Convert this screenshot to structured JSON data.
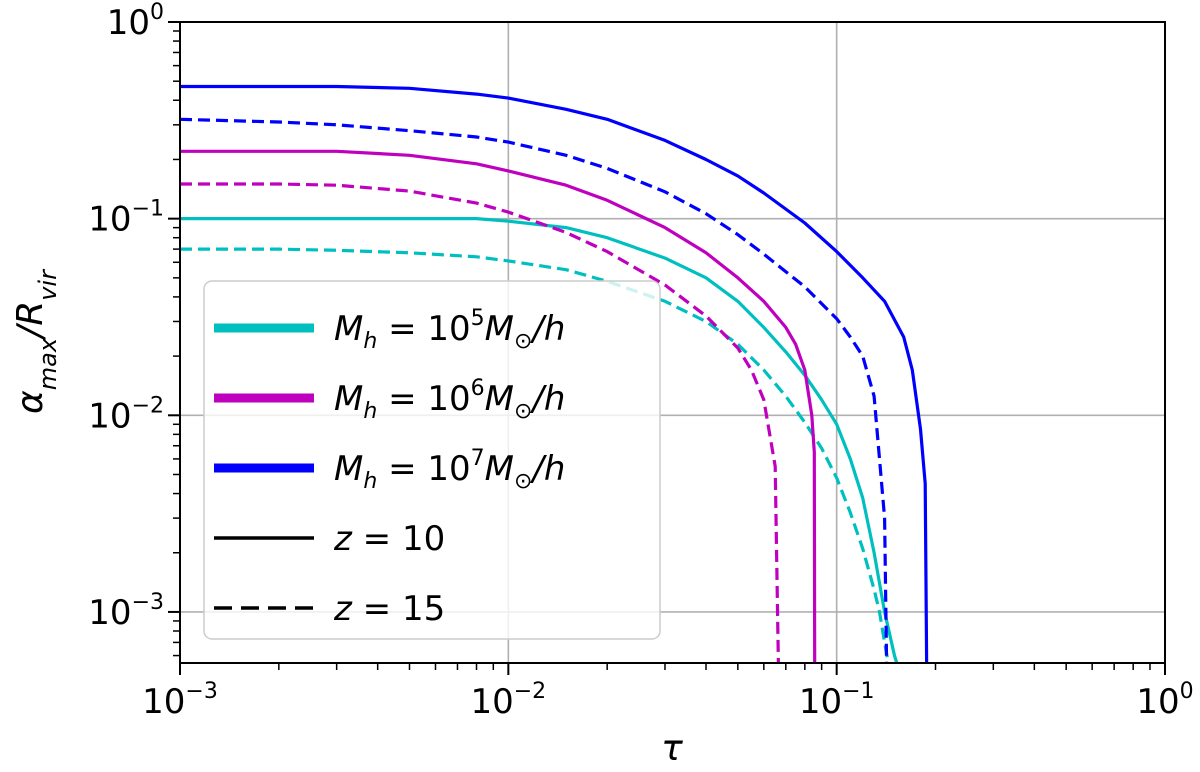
{
  "chart_data": {
    "type": "line",
    "xscale": "log",
    "yscale": "log",
    "xlim": [
      0.001,
      1
    ],
    "ylim": [
      0.00055,
      1
    ],
    "grid": true,
    "xlabel": "τ",
    "ylabel": "α_max/R_vir",
    "x_ticks": [
      {
        "value": 0.001,
        "base": "10",
        "exp": "−3"
      },
      {
        "value": 0.01,
        "base": "10",
        "exp": "−2"
      },
      {
        "value": 0.1,
        "base": "10",
        "exp": "−1"
      },
      {
        "value": 1,
        "base": "10",
        "exp": "0"
      }
    ],
    "y_ticks": [
      {
        "value": 0.001,
        "base": "10",
        "exp": "−3"
      },
      {
        "value": 0.01,
        "base": "10",
        "exp": "−2"
      },
      {
        "value": 0.1,
        "base": "10",
        "exp": "−1"
      },
      {
        "value": 1,
        "base": "10",
        "exp": "0"
      }
    ],
    "legend_position": "lower-left",
    "legend": [
      {
        "id": "m5",
        "kind": "color",
        "color": "#00bfbf",
        "lhs_sym": "M",
        "lhs_sub": "h",
        "eq": " = 10",
        "exp": "5",
        "rhs_sym": "M",
        "rhs_sub": "⊙",
        "rhs_tail": "/h"
      },
      {
        "id": "m6",
        "kind": "color",
        "color": "#bf00bf",
        "lhs_sym": "M",
        "lhs_sub": "h",
        "eq": " = 10",
        "exp": "6",
        "rhs_sym": "M",
        "rhs_sub": "⊙",
        "rhs_tail": "/h"
      },
      {
        "id": "m7",
        "kind": "color",
        "color": "#0000ff",
        "lhs_sym": "M",
        "lhs_sub": "h",
        "eq": " = 10",
        "exp": "7",
        "rhs_sym": "M",
        "rhs_sub": "⊙",
        "rhs_tail": "/h"
      },
      {
        "id": "z10",
        "kind": "style",
        "dash": false,
        "color": "#000000",
        "lhs_sym": "z",
        "eq": " = 10"
      },
      {
        "id": "z15",
        "kind": "style",
        "dash": true,
        "color": "#000000",
        "lhs_sym": "z",
        "eq": " = 15"
      }
    ],
    "series": [
      {
        "name": "M_h=10^5 M_sun/h, z=10",
        "color": "#00bfbf",
        "dash": false,
        "x": [
          0.001,
          0.003,
          0.005,
          0.008,
          0.01,
          0.015,
          0.02,
          0.03,
          0.04,
          0.05,
          0.06,
          0.07,
          0.08,
          0.09,
          0.1,
          0.11,
          0.12,
          0.13,
          0.14,
          0.15,
          0.155
        ],
        "y": [
          0.1,
          0.1,
          0.1,
          0.1,
          0.097,
          0.09,
          0.08,
          0.063,
          0.05,
          0.038,
          0.028,
          0.021,
          0.016,
          0.012,
          0.009,
          0.006,
          0.0038,
          0.002,
          0.001,
          0.0006,
          0.0005
        ]
      },
      {
        "name": "M_h=10^5 M_sun/h, z=15",
        "color": "#00bfbf",
        "dash": true,
        "x": [
          0.001,
          0.002,
          0.003,
          0.005,
          0.008,
          0.01,
          0.015,
          0.02,
          0.03,
          0.04,
          0.05,
          0.06,
          0.07,
          0.08,
          0.09,
          0.1,
          0.11,
          0.12,
          0.13,
          0.135,
          0.14,
          0.145
        ],
        "y": [
          0.07,
          0.07,
          0.069,
          0.067,
          0.064,
          0.061,
          0.055,
          0.048,
          0.038,
          0.03,
          0.023,
          0.017,
          0.0125,
          0.0092,
          0.0068,
          0.0048,
          0.0032,
          0.0021,
          0.0013,
          0.001,
          0.0007,
          0.0005
        ]
      },
      {
        "name": "M_h=10^6 M_sun/h, z=10",
        "color": "#bf00bf",
        "dash": false,
        "x": [
          0.001,
          0.003,
          0.005,
          0.008,
          0.01,
          0.015,
          0.02,
          0.03,
          0.04,
          0.05,
          0.06,
          0.07,
          0.075,
          0.08,
          0.084,
          0.0855,
          0.0857
        ],
        "y": [
          0.22,
          0.22,
          0.21,
          0.19,
          0.175,
          0.148,
          0.124,
          0.09,
          0.067,
          0.05,
          0.038,
          0.028,
          0.023,
          0.017,
          0.01,
          0.0065,
          0.0005
        ]
      },
      {
        "name": "M_h=10^6 M_sun/h, z=15",
        "color": "#bf00bf",
        "dash": true,
        "x": [
          0.001,
          0.002,
          0.003,
          0.005,
          0.008,
          0.01,
          0.015,
          0.02,
          0.03,
          0.04,
          0.05,
          0.055,
          0.06,
          0.065,
          0.0665
        ],
        "y": [
          0.15,
          0.15,
          0.148,
          0.138,
          0.12,
          0.108,
          0.085,
          0.068,
          0.046,
          0.032,
          0.022,
          0.017,
          0.012,
          0.0055,
          0.0005
        ]
      },
      {
        "name": "M_h=10^7 M_sun/h, z=10",
        "color": "#0000ff",
        "dash": false,
        "x": [
          0.001,
          0.003,
          0.005,
          0.008,
          0.01,
          0.015,
          0.02,
          0.03,
          0.04,
          0.05,
          0.06,
          0.08,
          0.1,
          0.12,
          0.14,
          0.16,
          0.17,
          0.18,
          0.186,
          0.188
        ],
        "y": [
          0.47,
          0.47,
          0.46,
          0.43,
          0.41,
          0.36,
          0.32,
          0.25,
          0.2,
          0.165,
          0.135,
          0.095,
          0.068,
          0.05,
          0.038,
          0.025,
          0.017,
          0.0085,
          0.0045,
          0.0005
        ]
      },
      {
        "name": "M_h=10^7 M_sun/h, z=15",
        "color": "#0000ff",
        "dash": true,
        "x": [
          0.001,
          0.002,
          0.003,
          0.005,
          0.008,
          0.01,
          0.015,
          0.02,
          0.03,
          0.04,
          0.05,
          0.06,
          0.08,
          0.1,
          0.11,
          0.12,
          0.13,
          0.14,
          0.142
        ],
        "y": [
          0.32,
          0.31,
          0.3,
          0.28,
          0.26,
          0.245,
          0.21,
          0.18,
          0.137,
          0.106,
          0.083,
          0.066,
          0.045,
          0.031,
          0.025,
          0.02,
          0.0125,
          0.003,
          0.0005
        ]
      }
    ]
  }
}
